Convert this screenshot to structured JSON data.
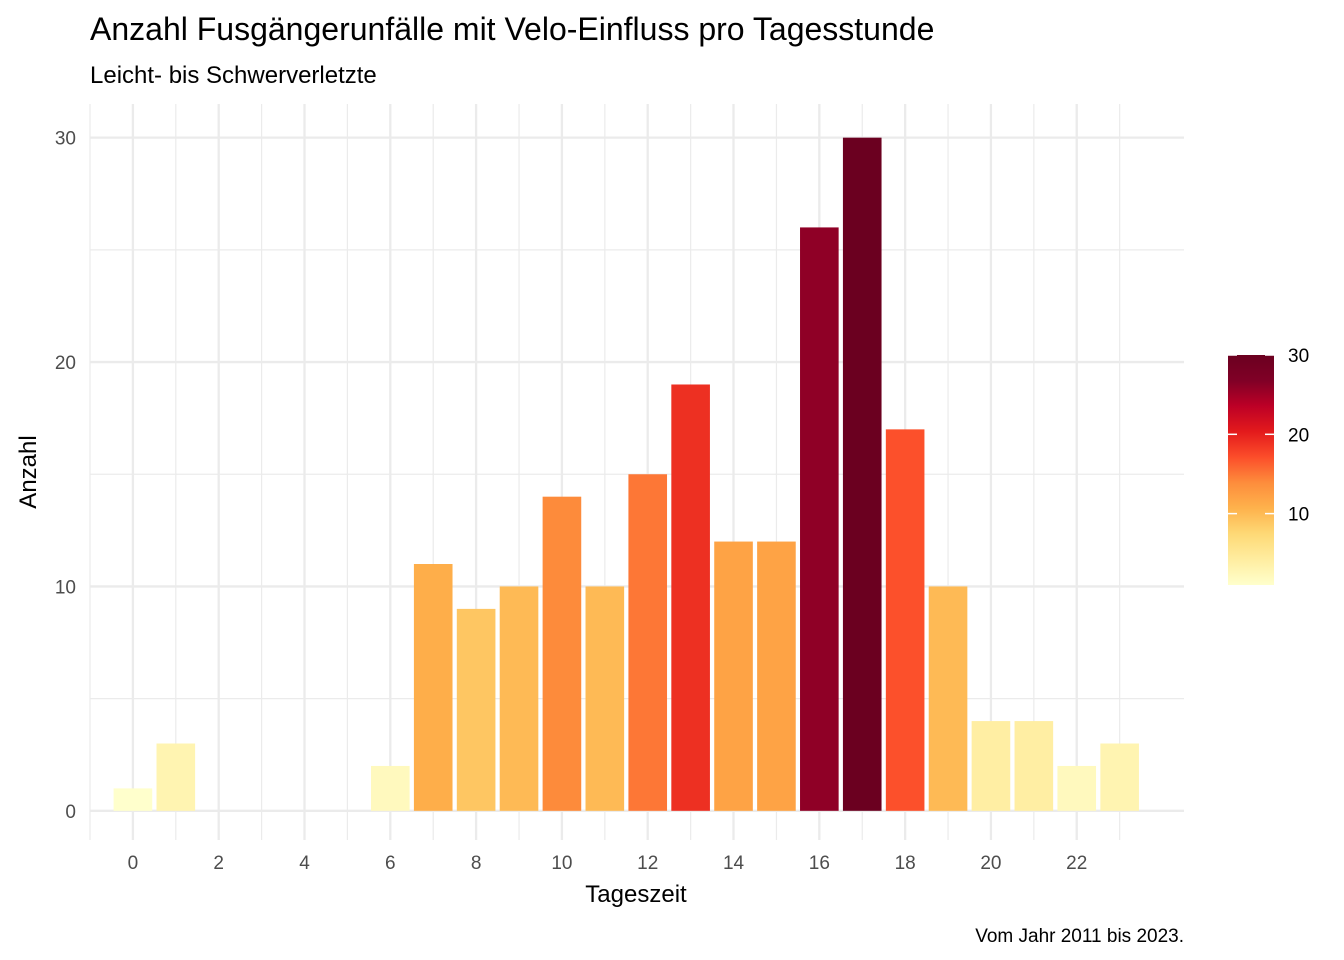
{
  "chart_data": {
    "type": "bar",
    "title": "Anzahl Fusgängerunfälle mit Velo-Einfluss pro Tagesstunde",
    "subtitle": "Leicht- bis Schwerverletzte",
    "xlabel": "Tageszeit",
    "ylabel": "Anzahl",
    "caption": "Vom Jahr 2011 bis 2023.",
    "x": [
      0,
      1,
      2,
      3,
      4,
      5,
      6,
      7,
      8,
      9,
      10,
      11,
      12,
      13,
      14,
      15,
      16,
      17,
      18,
      19,
      20,
      21,
      22,
      23
    ],
    "values": [
      1,
      3,
      0,
      0,
      0,
      0,
      2,
      11,
      9,
      10,
      14,
      10,
      15,
      19,
      12,
      12,
      26,
      30,
      17,
      10,
      4,
      4,
      2,
      3
    ],
    "xticks": [
      0,
      2,
      4,
      6,
      8,
      10,
      12,
      14,
      16,
      18,
      20,
      22
    ],
    "yticks": [
      0,
      10,
      20,
      30
    ],
    "xlim": [
      -1,
      24.5
    ],
    "ylim": [
      -1.3,
      31.5
    ],
    "grid": true,
    "legend": {
      "position": "right",
      "min": 1,
      "max": 30,
      "ticks": [
        10,
        20,
        30
      ],
      "colors": [
        "#ffffcc",
        "#ffeda0",
        "#fed976",
        "#feb24c",
        "#fd8d3c",
        "#fc4e2a",
        "#e31a1c",
        "#bd0026",
        "#800026",
        "#6b0020"
      ]
    }
  }
}
